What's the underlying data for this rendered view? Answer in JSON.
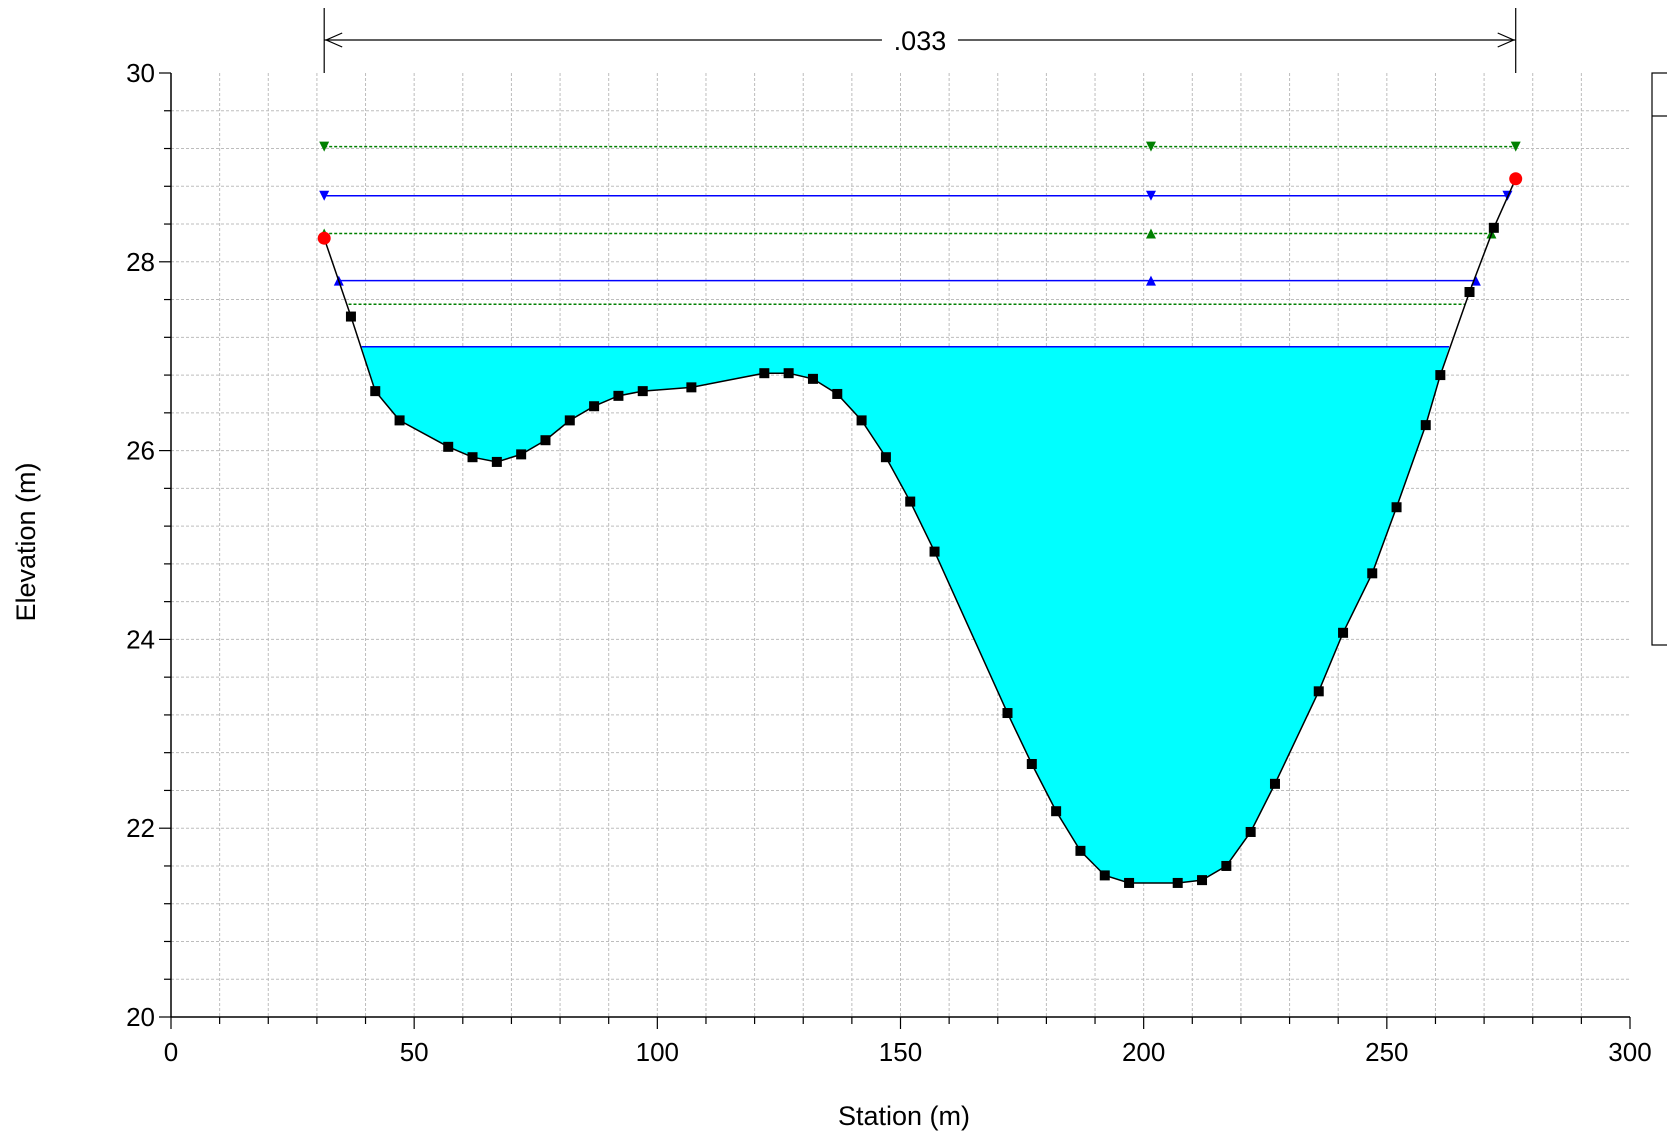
{
  "colors": {
    "water_fill": "#00FFFF",
    "ground_line": "#000000",
    "ground_marker": "#000000",
    "bank_marker": "#FF0000",
    "ws_line_blue": "#0000FF",
    "ws_line_green": "#008000",
    "grid": "#BDBDBD"
  },
  "chart_data": {
    "type": "area",
    "title": "",
    "xlabel": "Station (m)",
    "ylabel": "Elevation (m)",
    "xlim": [
      0,
      300
    ],
    "ylim": [
      20,
      30
    ],
    "x_major_ticks": [
      0,
      50,
      100,
      150,
      200,
      250,
      300
    ],
    "x_tick_labels": [
      "0",
      "50",
      "100",
      "150",
      "200",
      "250",
      "300"
    ],
    "y_major_ticks": [
      20,
      22,
      24,
      26,
      28,
      30
    ],
    "y_tick_labels": [
      "20",
      "22",
      "24",
      "26",
      "28",
      "30"
    ],
    "grid": true,
    "legend": "right (contents not visible)",
    "manning_n_label": ".033",
    "manning_n_extent": [
      31.5,
      276.5
    ],
    "ground_profile": {
      "x": [
        31.5,
        37,
        42,
        47,
        57,
        62,
        67,
        72,
        77,
        82,
        87,
        92,
        97,
        107,
        122,
        127,
        132,
        137,
        142,
        147,
        152,
        157,
        172,
        177,
        182,
        187,
        192,
        197,
        207,
        212,
        217,
        222,
        227,
        236,
        241,
        247,
        252,
        258,
        261,
        267,
        272,
        276.5
      ],
      "y": [
        28.25,
        27.42,
        26.63,
        26.32,
        26.04,
        25.93,
        25.88,
        25.96,
        26.11,
        26.32,
        26.47,
        26.58,
        26.63,
        26.67,
        26.82,
        26.82,
        26.76,
        26.6,
        26.32,
        25.93,
        25.46,
        24.93,
        23.22,
        22.68,
        22.18,
        21.76,
        21.5,
        21.42,
        21.42,
        21.45,
        21.6,
        21.96,
        22.47,
        23.45,
        24.07,
        24.7,
        25.4,
        26.27,
        26.8,
        27.68,
        28.36,
        28.88
      ]
    },
    "bank_stations": [
      {
        "x": 31.5,
        "y": 28.25
      },
      {
        "x": 276.5,
        "y": 28.88
      }
    ],
    "water_surface": {
      "elevation": 27.1,
      "x_start": 39.2,
      "x_end": 262.8
    },
    "water_surface_lines": [
      {
        "elevation": 29.22,
        "x_start": 31.5,
        "x_end": 276.5,
        "color": "green",
        "style": "dashed",
        "markers": "triangle-down",
        "marker_x": [
          31.5,
          201.5,
          276.5
        ]
      },
      {
        "elevation": 28.7,
        "x_start": 31.5,
        "x_end": 274.8,
        "color": "blue",
        "style": "solid",
        "markers": "triangle-down",
        "marker_x": [
          31.5,
          201.5,
          274.8
        ]
      },
      {
        "elevation": 28.3,
        "x_start": 31.5,
        "x_end": 271.5,
        "color": "green",
        "style": "dashed",
        "markers": "triangle-up",
        "marker_x": [
          31.5,
          201.5,
          271.5
        ]
      },
      {
        "elevation": 27.8,
        "x_start": 34.5,
        "x_end": 268.3,
        "color": "blue",
        "style": "solid",
        "markers": "triangle-up",
        "marker_x": [
          34.5,
          201.5,
          268.3
        ]
      },
      {
        "elevation": 27.55,
        "x_start": 36.5,
        "x_end": 266,
        "color": "green",
        "style": "dashed",
        "markers": "none",
        "marker_x": []
      }
    ]
  }
}
